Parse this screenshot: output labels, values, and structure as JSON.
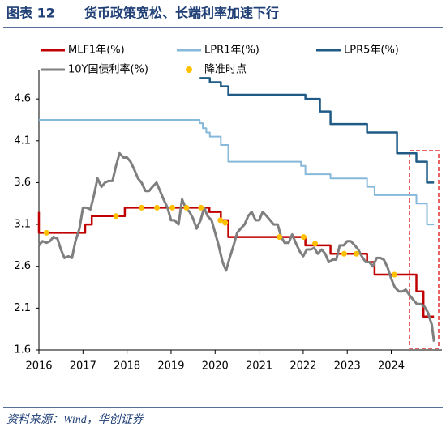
{
  "chart_data": {
    "type": "line",
    "figure_label": "图表 12",
    "title": "货币政策宽松、长端利率加速下行",
    "source": "资料来源：Wind，华创证券",
    "xlim": [
      2016,
      2025.15
    ],
    "xticks": [
      2016,
      2017,
      2018,
      2019,
      2020,
      2021,
      2022,
      2023,
      2024
    ],
    "ylim": [
      1.6,
      4.95
    ],
    "yticks": [
      1.6,
      2.1,
      2.6,
      3.1,
      3.6,
      4.1,
      4.6
    ],
    "series": [
      {
        "name": "MLF1年(%)",
        "type": "line",
        "color": "#C00000",
        "width": 2.5,
        "x": [
          2016,
          2016,
          2017.05,
          2017.05,
          2017.2,
          2017.2,
          2017.95,
          2017.95,
          2019.87,
          2019.87,
          2020.13,
          2020.13,
          2020.3,
          2020.3,
          2022.05,
          2022.05,
          2022.62,
          2022.62,
          2023.45,
          2023.45,
          2023.62,
          2023.62,
          2024.57,
          2024.57,
          2024.73,
          2024.73,
          2024.97
        ],
        "values": [
          3.25,
          3.0,
          3.0,
          3.1,
          3.1,
          3.2,
          3.2,
          3.3,
          3.3,
          3.25,
          3.25,
          3.15,
          3.15,
          2.95,
          2.95,
          2.85,
          2.85,
          2.75,
          2.75,
          2.65,
          2.65,
          2.5,
          2.5,
          2.3,
          2.3,
          2.0,
          2.0
        ]
      },
      {
        "name": "LPR1年(%)",
        "type": "line",
        "color": "#86B8DA",
        "width": 2,
        "x": [
          2016,
          2019.65,
          2019.65,
          2019.72,
          2019.72,
          2019.8,
          2019.8,
          2019.88,
          2019.88,
          2020.13,
          2020.13,
          2020.3,
          2020.3,
          2021.95,
          2021.95,
          2022.05,
          2022.05,
          2022.62,
          2022.62,
          2023.45,
          2023.45,
          2023.62,
          2023.62,
          2024.57,
          2024.57,
          2024.81,
          2024.81,
          2024.97
        ],
        "values": [
          4.35,
          4.35,
          4.31,
          4.31,
          4.25,
          4.25,
          4.2,
          4.2,
          4.15,
          4.15,
          4.05,
          4.05,
          3.85,
          3.85,
          3.8,
          3.8,
          3.7,
          3.7,
          3.65,
          3.65,
          3.55,
          3.55,
          3.45,
          3.45,
          3.35,
          3.35,
          3.1,
          3.1
        ]
      },
      {
        "name": "LPR5年(%)",
        "type": "line",
        "color": "#1F5B86",
        "width": 2.5,
        "x": [
          2019.65,
          2019.88,
          2019.88,
          2020.13,
          2020.13,
          2020.3,
          2020.3,
          2022.05,
          2022.05,
          2022.38,
          2022.38,
          2022.62,
          2022.62,
          2023.45,
          2023.45,
          2024.13,
          2024.13,
          2024.57,
          2024.57,
          2024.81,
          2024.81,
          2024.97
        ],
        "values": [
          4.85,
          4.85,
          4.8,
          4.8,
          4.75,
          4.75,
          4.65,
          4.65,
          4.6,
          4.6,
          4.45,
          4.45,
          4.3,
          4.3,
          4.2,
          4.2,
          3.95,
          3.95,
          3.85,
          3.85,
          3.6,
          3.6
        ]
      },
      {
        "name": "10Y国债利率(%)",
        "type": "line",
        "color": "#7F7F7F",
        "width": 3,
        "x": [
          2016,
          2016.08,
          2016.17,
          2016.25,
          2016.33,
          2016.42,
          2016.5,
          2016.58,
          2016.67,
          2016.75,
          2016.83,
          2016.92,
          2017,
          2017.08,
          2017.17,
          2017.25,
          2017.33,
          2017.42,
          2017.5,
          2017.58,
          2017.67,
          2017.75,
          2017.83,
          2017.92,
          2018,
          2018.08,
          2018.17,
          2018.25,
          2018.33,
          2018.42,
          2018.5,
          2018.58,
          2018.67,
          2018.75,
          2018.83,
          2018.92,
          2019,
          2019.08,
          2019.17,
          2019.25,
          2019.33,
          2019.42,
          2019.5,
          2019.58,
          2019.67,
          2019.75,
          2019.83,
          2019.92,
          2020,
          2020.08,
          2020.17,
          2020.25,
          2020.33,
          2020.42,
          2020.5,
          2020.58,
          2020.67,
          2020.75,
          2020.83,
          2020.92,
          2021,
          2021.08,
          2021.17,
          2021.25,
          2021.33,
          2021.42,
          2021.5,
          2021.58,
          2021.67,
          2021.75,
          2021.83,
          2021.92,
          2022,
          2022.08,
          2022.17,
          2022.25,
          2022.33,
          2022.42,
          2022.5,
          2022.58,
          2022.67,
          2022.75,
          2022.83,
          2022.92,
          2023,
          2023.08,
          2023.17,
          2023.25,
          2023.33,
          2023.42,
          2023.5,
          2023.58,
          2023.67,
          2023.75,
          2023.83,
          2023.92,
          2024,
          2024.08,
          2024.17,
          2024.25,
          2024.33,
          2024.42,
          2024.5,
          2024.58,
          2024.67,
          2024.75,
          2024.83,
          2024.92,
          2024.97
        ],
        "values": [
          2.85,
          2.9,
          2.88,
          2.9,
          2.95,
          2.93,
          2.8,
          2.7,
          2.72,
          2.7,
          2.9,
          3.05,
          3.3,
          3.3,
          3.28,
          3.45,
          3.65,
          3.55,
          3.6,
          3.62,
          3.62,
          3.8,
          3.95,
          3.9,
          3.9,
          3.85,
          3.75,
          3.65,
          3.6,
          3.5,
          3.5,
          3.55,
          3.6,
          3.5,
          3.4,
          3.3,
          3.15,
          3.15,
          3.1,
          3.4,
          3.3,
          3.25,
          3.17,
          3.05,
          3.15,
          3.3,
          3.2,
          3.15,
          3.0,
          2.85,
          2.65,
          2.55,
          2.7,
          2.85,
          3.0,
          3.05,
          3.1,
          3.2,
          3.25,
          3.15,
          3.15,
          3.25,
          3.2,
          3.15,
          3.1,
          3.1,
          2.95,
          2.88,
          2.88,
          2.98,
          2.88,
          2.78,
          2.72,
          2.8,
          2.8,
          2.82,
          2.75,
          2.8,
          2.75,
          2.65,
          2.68,
          2.68,
          2.85,
          2.85,
          2.9,
          2.9,
          2.85,
          2.8,
          2.72,
          2.65,
          2.65,
          2.6,
          2.7,
          2.7,
          2.68,
          2.58,
          2.45,
          2.35,
          2.3,
          2.3,
          2.32,
          2.25,
          2.2,
          2.15,
          2.15,
          2.12,
          2.05,
          1.9,
          1.7
        ]
      },
      {
        "name": "降准时点",
        "type": "scatter",
        "color": "#FFC000",
        "x": [
          2016.17,
          2017.75,
          2018.33,
          2018.68,
          2019.03,
          2019.35,
          2019.68,
          2020.12,
          2020.23,
          2021.46,
          2022.01,
          2022.27,
          2022.93,
          2023.21,
          2024.07
        ],
        "values": [
          3.0,
          3.2,
          3.3,
          3.3,
          3.3,
          3.3,
          3.3,
          3.15,
          3.12,
          2.95,
          2.95,
          2.87,
          2.75,
          2.75,
          2.5
        ]
      }
    ]
  }
}
